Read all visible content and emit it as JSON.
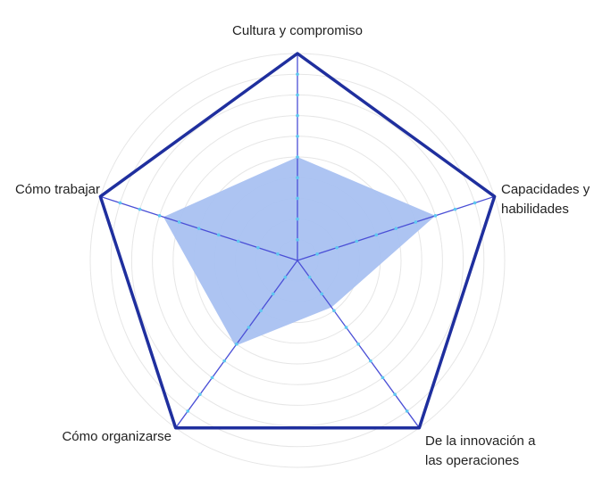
{
  "chart_data": {
    "type": "radar",
    "categories": [
      "Cultura y compromiso",
      "Capacidades y habilidades",
      "De la innovación a las operaciones",
      "Cómo organizarse",
      "Cómo trabajar"
    ],
    "values": [
      5,
      7,
      2.8,
      5.1,
      6.8
    ],
    "ylim": [
      0,
      10
    ],
    "color": "#a9c1f1",
    "outline_color": "#1f2f9e",
    "axis_color": "#4a4fd6",
    "grid": true
  }
}
